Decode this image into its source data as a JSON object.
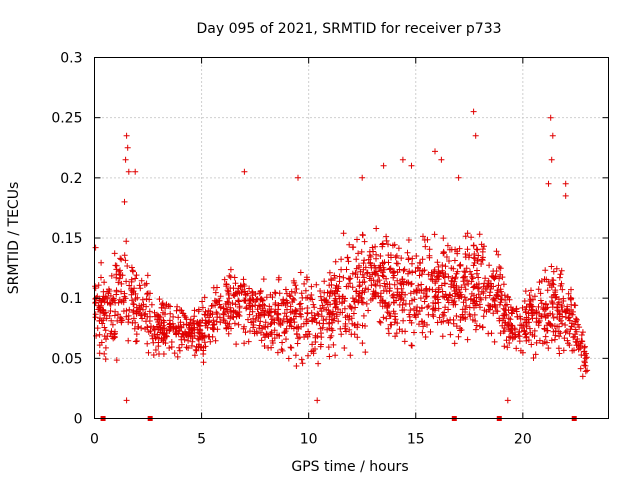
{
  "chart_data": {
    "type": "scatter",
    "title": "Day 095 of 2021, SRMTID for receiver p733",
    "xlabel": "GPS time / hours",
    "ylabel": "SRMTID / TECUs",
    "xlim": [
      0,
      24
    ],
    "ylim": [
      0,
      0.3
    ],
    "xticks": [
      0,
      5,
      10,
      15,
      20
    ],
    "xtick_labels": [
      "0",
      "5",
      "10",
      "15",
      "20"
    ],
    "yticks": [
      0,
      0.05,
      0.1,
      0.15,
      0.2,
      0.25,
      0.3
    ],
    "ytick_labels": [
      "0",
      "0.05",
      "0.1",
      "0.15",
      "0.2",
      "0.25",
      "0.3"
    ],
    "grid": true,
    "marker": "plus",
    "color": "#e00000",
    "baseline_markers_x": [
      0.4,
      2.6,
      16.8,
      18.9,
      22.4
    ],
    "envelope": {
      "x": [
        0,
        0.5,
        1,
        1.5,
        2,
        2.5,
        3,
        3.5,
        4,
        4.5,
        5,
        5.5,
        6,
        6.5,
        7,
        7.5,
        8,
        8.5,
        9,
        9.5,
        10,
        10.5,
        11,
        11.5,
        12,
        12.5,
        13,
        13.5,
        14,
        14.5,
        15,
        15.5,
        16,
        16.5,
        17,
        17.5,
        18,
        18.5,
        19,
        19.5,
        20,
        20.5,
        21,
        21.5,
        22,
        22.5,
        23
      ],
      "center": [
        0.095,
        0.085,
        0.09,
        0.1,
        0.095,
        0.085,
        0.08,
        0.075,
        0.075,
        0.075,
        0.07,
        0.085,
        0.09,
        0.095,
        0.09,
        0.09,
        0.085,
        0.085,
        0.085,
        0.085,
        0.08,
        0.085,
        0.09,
        0.1,
        0.105,
        0.11,
        0.115,
        0.115,
        0.11,
        0.105,
        0.1,
        0.11,
        0.115,
        0.11,
        0.11,
        0.115,
        0.11,
        0.105,
        0.1,
        0.075,
        0.075,
        0.085,
        0.09,
        0.095,
        0.09,
        0.07,
        0.05
      ],
      "spread": [
        0.03,
        0.035,
        0.04,
        0.045,
        0.035,
        0.03,
        0.025,
        0.02,
        0.02,
        0.02,
        0.025,
        0.025,
        0.03,
        0.03,
        0.035,
        0.03,
        0.03,
        0.03,
        0.035,
        0.04,
        0.035,
        0.035,
        0.035,
        0.04,
        0.045,
        0.045,
        0.045,
        0.045,
        0.045,
        0.045,
        0.04,
        0.045,
        0.045,
        0.04,
        0.04,
        0.045,
        0.045,
        0.04,
        0.035,
        0.02,
        0.025,
        0.03,
        0.035,
        0.04,
        0.035,
        0.02,
        0.012
      ]
    },
    "notable_points": [
      {
        "x": 0.05,
        "y": 0.142
      },
      {
        "x": 1.5,
        "y": 0.235
      },
      {
        "x": 1.55,
        "y": 0.225
      },
      {
        "x": 1.45,
        "y": 0.215
      },
      {
        "x": 1.6,
        "y": 0.205
      },
      {
        "x": 1.9,
        "y": 0.205
      },
      {
        "x": 1.4,
        "y": 0.18
      },
      {
        "x": 1.5,
        "y": 0.015
      },
      {
        "x": 7.0,
        "y": 0.205
      },
      {
        "x": 9.5,
        "y": 0.2
      },
      {
        "x": 10.4,
        "y": 0.015
      },
      {
        "x": 12.5,
        "y": 0.2
      },
      {
        "x": 13.5,
        "y": 0.21
      },
      {
        "x": 14.4,
        "y": 0.215
      },
      {
        "x": 14.8,
        "y": 0.21
      },
      {
        "x": 15.9,
        "y": 0.222
      },
      {
        "x": 16.2,
        "y": 0.215
      },
      {
        "x": 17.0,
        "y": 0.2
      },
      {
        "x": 17.7,
        "y": 0.255
      },
      {
        "x": 17.8,
        "y": 0.235
      },
      {
        "x": 21.3,
        "y": 0.25
      },
      {
        "x": 21.4,
        "y": 0.235
      },
      {
        "x": 21.35,
        "y": 0.215
      },
      {
        "x": 21.2,
        "y": 0.195
      },
      {
        "x": 22.0,
        "y": 0.195
      },
      {
        "x": 22.0,
        "y": 0.185
      },
      {
        "x": 19.3,
        "y": 0.015
      },
      {
        "x": 22.8,
        "y": 0.035
      },
      {
        "x": 23.0,
        "y": 0.04
      }
    ]
  }
}
